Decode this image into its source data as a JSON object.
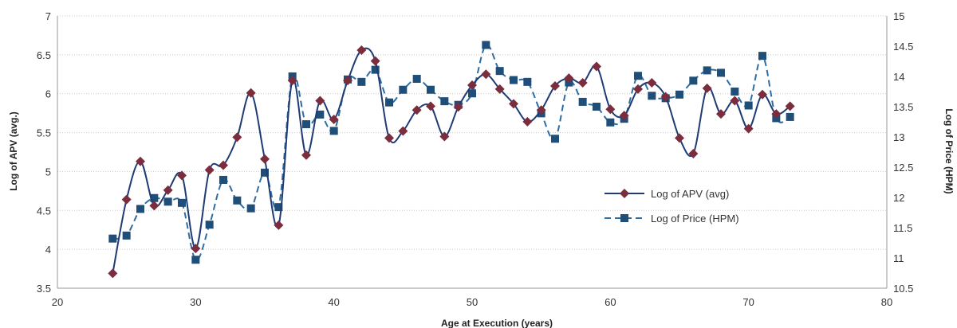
{
  "chart_data": {
    "type": "line",
    "xlabel": "Age at Execution (years)",
    "ylabel": "Log of APV (avg.)",
    "y2label": "Log of Price (HPM)",
    "xlim": [
      20,
      80
    ],
    "ylim": [
      3.5,
      7
    ],
    "y2lim": [
      10.5,
      15
    ],
    "x_ticks": [
      "20",
      "30",
      "40",
      "50",
      "60",
      "70",
      "80"
    ],
    "y_ticks": [
      "3.5",
      "4",
      "4.5",
      "5",
      "5.5",
      "6",
      "6.5",
      "7"
    ],
    "y2_ticks": [
      "10.5",
      "11",
      "11.5",
      "12",
      "12.5",
      "13",
      "13.5",
      "14",
      "14.5",
      "15"
    ],
    "grid": true,
    "legend_position": "center-right",
    "series": [
      {
        "name": "Log of APV (avg)",
        "axis": "left",
        "style": "solid",
        "marker": "diamond",
        "color": "#1f3b73",
        "marker_color": "#7b2d3d",
        "x": [
          24,
          25,
          26,
          27,
          28,
          29,
          30,
          31,
          32,
          33,
          34,
          35,
          36,
          37,
          38,
          39,
          40,
          41,
          42,
          43,
          44,
          45,
          46,
          47,
          48,
          49,
          50,
          51,
          52,
          53,
          54,
          55,
          56,
          57,
          58,
          59,
          60,
          61,
          62,
          63,
          64,
          65,
          66,
          67,
          68,
          69,
          70,
          71,
          72,
          73
        ],
        "y": [
          3.69,
          4.64,
          5.13,
          4.56,
          4.76,
          4.95,
          4.01,
          5.02,
          5.08,
          5.44,
          6.01,
          5.16,
          4.31,
          6.17,
          5.21,
          5.91,
          5.67,
          6.17,
          6.56,
          6.42,
          5.43,
          5.52,
          5.79,
          5.84,
          5.45,
          5.83,
          6.11,
          6.25,
          6.06,
          5.87,
          5.64,
          5.79,
          6.1,
          6.2,
          6.14,
          6.35,
          5.8,
          5.72,
          6.06,
          6.14,
          5.96,
          5.43,
          5.23,
          6.07,
          5.74,
          5.91,
          5.55,
          5.99,
          5.74,
          5.84
        ]
      },
      {
        "name": "Log of Price (HPM)",
        "axis": "right",
        "style": "dashed",
        "marker": "square",
        "color": "#2e6da4",
        "marker_color": "#1f4e79",
        "x": [
          24,
          25,
          26,
          27,
          28,
          29,
          30,
          31,
          32,
          33,
          34,
          35,
          36,
          37,
          38,
          39,
          40,
          41,
          42,
          43,
          44,
          45,
          46,
          47,
          48,
          49,
          50,
          51,
          52,
          53,
          54,
          55,
          56,
          57,
          58,
          59,
          60,
          61,
          62,
          63,
          64,
          65,
          66,
          67,
          68,
          69,
          70,
          71,
          72,
          73
        ],
        "y": [
          11.32,
          11.37,
          11.81,
          11.99,
          11.93,
          11.91,
          10.97,
          11.55,
          12.29,
          11.95,
          11.82,
          12.41,
          11.84,
          14.0,
          13.21,
          13.37,
          13.1,
          13.95,
          13.91,
          14.11,
          13.57,
          13.78,
          13.96,
          13.78,
          13.59,
          13.53,
          13.72,
          14.52,
          14.09,
          13.94,
          13.91,
          13.39,
          12.97,
          13.9,
          13.58,
          13.5,
          13.24,
          13.3,
          14.01,
          13.68,
          13.64,
          13.7,
          13.93,
          14.1,
          14.06,
          13.75,
          13.52,
          14.34,
          13.31,
          13.33
        ]
      }
    ]
  }
}
